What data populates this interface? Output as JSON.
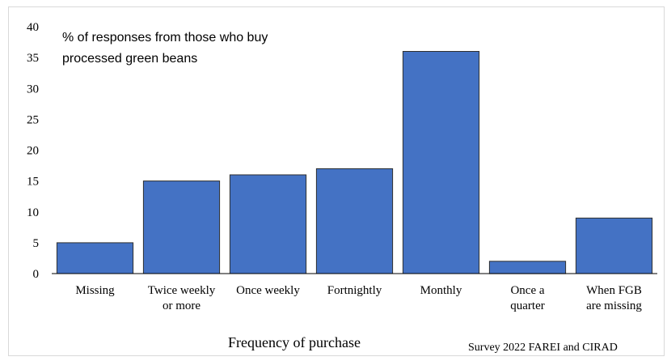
{
  "chart_data": {
    "type": "bar",
    "title_lines": [
      "% of responses from those who buy",
      "processed green beans"
    ],
    "xlabel": "Frequency of purchase",
    "ylabel": "",
    "ylim": [
      0,
      40
    ],
    "yticks": [
      0,
      5,
      10,
      15,
      20,
      25,
      30,
      35,
      40
    ],
    "grid": false,
    "categories": [
      [
        "Missing"
      ],
      [
        "Twice weekly",
        "or more"
      ],
      [
        "Once weekly"
      ],
      [
        "Fortnightly"
      ],
      [
        "Monthly"
      ],
      [
        "Once a",
        "quarter"
      ],
      [
        "When FGB",
        "are missing"
      ]
    ],
    "values": [
      5,
      15,
      16,
      17,
      36,
      2,
      9
    ],
    "bar_color": "#4472c4",
    "bar_edge_color": "#2f2f2f",
    "axis_color": "#000000",
    "source": "Survey 2022 FAREI and CIRAD"
  }
}
